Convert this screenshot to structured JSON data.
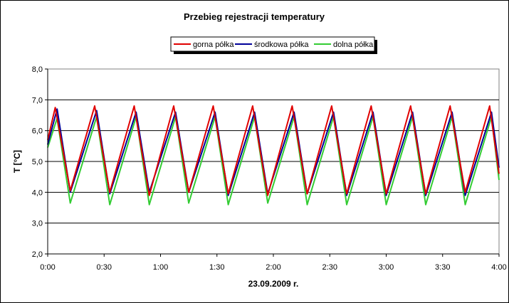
{
  "chart_data": {
    "type": "line",
    "title": "Przebieg rejestracji temperatury",
    "xlabel": "23.09.2009 r.",
    "ylabel": "T [°C]",
    "ylim": [
      2.0,
      8.0
    ],
    "y_ticks": [
      "2,0",
      "3,0",
      "4,0",
      "5,0",
      "6,0",
      "7,0",
      "8,0"
    ],
    "xlim_minutes": [
      0,
      240
    ],
    "x_ticks": [
      "0:00",
      "0:30",
      "1:00",
      "1:30",
      "2:00",
      "2:30",
      "3:00",
      "3:30",
      "4:00"
    ],
    "grid": "horizontal",
    "legend_position": "top",
    "series": [
      {
        "name": "gorna półka",
        "color": "#e00000",
        "x_minutes": [
          0,
          4,
          12,
          25,
          33,
          46,
          54,
          67,
          75,
          88,
          96,
          109,
          117,
          130,
          138,
          151,
          159,
          172,
          180,
          193,
          201,
          214,
          222,
          235,
          240
        ],
        "values": [
          5.7,
          6.75,
          4.05,
          6.8,
          4.0,
          6.8,
          3.9,
          6.8,
          4.0,
          6.8,
          3.95,
          6.8,
          3.9,
          6.8,
          3.95,
          6.8,
          3.95,
          6.8,
          3.95,
          6.8,
          3.95,
          6.8,
          4.0,
          6.8,
          4.6
        ]
      },
      {
        "name": "środkowa półka",
        "color": "#000099",
        "x_minutes": [
          0,
          5,
          12,
          26,
          33,
          47,
          54,
          68,
          75,
          89,
          96,
          110,
          117,
          131,
          138,
          152,
          159,
          173,
          180,
          194,
          201,
          215,
          222,
          236,
          240
        ],
        "values": [
          5.55,
          6.7,
          4.0,
          6.65,
          3.95,
          6.6,
          4.0,
          6.6,
          4.0,
          6.6,
          3.9,
          6.6,
          3.95,
          6.6,
          3.95,
          6.6,
          3.9,
          6.6,
          3.9,
          6.6,
          3.9,
          6.6,
          3.9,
          6.6,
          4.8
        ]
      },
      {
        "name": "dolna półka",
        "color": "#33cc33",
        "x_minutes": [
          0,
          5,
          12,
          26,
          33,
          47,
          54,
          68,
          75,
          89,
          96,
          110,
          117,
          131,
          138,
          152,
          159,
          173,
          180,
          194,
          201,
          215,
          222,
          236,
          240
        ],
        "values": [
          5.45,
          6.4,
          3.65,
          6.45,
          3.6,
          6.45,
          3.6,
          6.45,
          3.65,
          6.45,
          3.6,
          6.45,
          3.65,
          6.45,
          3.6,
          6.45,
          3.6,
          6.45,
          3.6,
          6.45,
          3.6,
          6.45,
          3.6,
          6.45,
          4.4
        ]
      }
    ]
  }
}
